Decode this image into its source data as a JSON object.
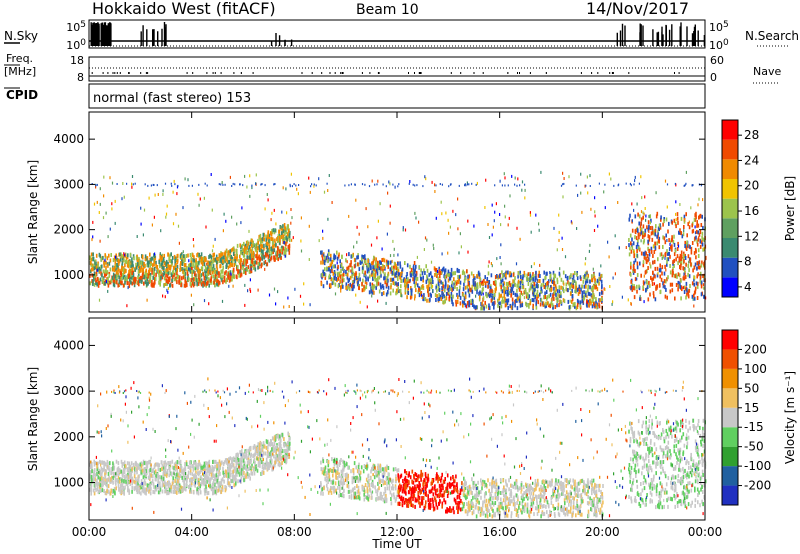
{
  "header": {
    "title": "Hokkaido West (fitACF)",
    "beam": "Beam 10",
    "date": "14/Nov/2017"
  },
  "side_labels": {
    "nsky": "N.Sky",
    "freq": "Freq.",
    "freq_unit": "[MHz]",
    "cpid": "CPID",
    "nsearch": "N.Search",
    "nave": "Nave"
  },
  "noise_axis": {
    "left_ticks": [
      "10^5",
      "10^0"
    ],
    "right_ticks": [
      "10^5",
      "10^0"
    ]
  },
  "freq_axis": {
    "left_ticks": [
      "18",
      "8"
    ],
    "right_ticks": [
      "60",
      "0"
    ]
  },
  "cpid_text": "normal (fast stereo) 153",
  "colors": {
    "power_scale": [
      "#0000ff",
      "#2050c0",
      "#3a8a70",
      "#5fa060",
      "#9cc44c",
      "#f0c400",
      "#f08a00",
      "#f04a00",
      "#ff0000"
    ],
    "velocity_scale": [
      "#2030c0",
      "#2060a0",
      "#30a030",
      "#60d060",
      "#c8c8c8",
      "#f0c060",
      "#f09000",
      "#f05000",
      "#ff0000"
    ]
  },
  "chart_data": [
    {
      "type": "heatmap",
      "name": "power-panel",
      "ylabel": "Slant Range [km]",
      "yticks": [
        "4000",
        "3000",
        "2000",
        "1000"
      ],
      "ylim": [
        180,
        4600
      ],
      "xticks": [
        "00:00",
        "04:00",
        "08:00",
        "12:00",
        "16:00",
        "20:00",
        "00:00"
      ],
      "xlim_hours": [
        0,
        24
      ],
      "colorbar": {
        "label": "Power [dB]",
        "ticks": [
          "28",
          "24",
          "20",
          "16",
          "12",
          "8",
          "4"
        ],
        "range": [
          0,
          30
        ]
      }
    },
    {
      "type": "heatmap",
      "name": "velocity-panel",
      "ylabel": "Slant Range [km]",
      "yticks": [
        "4000",
        "3000",
        "2000",
        "1000"
      ],
      "ylim": [
        180,
        4600
      ],
      "xticks": [
        "00:00",
        "04:00",
        "08:00",
        "12:00",
        "16:00",
        "20:00",
        "00:00"
      ],
      "xlabel": "Time UT",
      "colorbar": {
        "label": "Velocity [m s⁻¹]",
        "ticks": [
          "200",
          "100",
          "50",
          "15",
          "-15",
          "-50",
          "-100",
          "-200"
        ]
      }
    }
  ]
}
